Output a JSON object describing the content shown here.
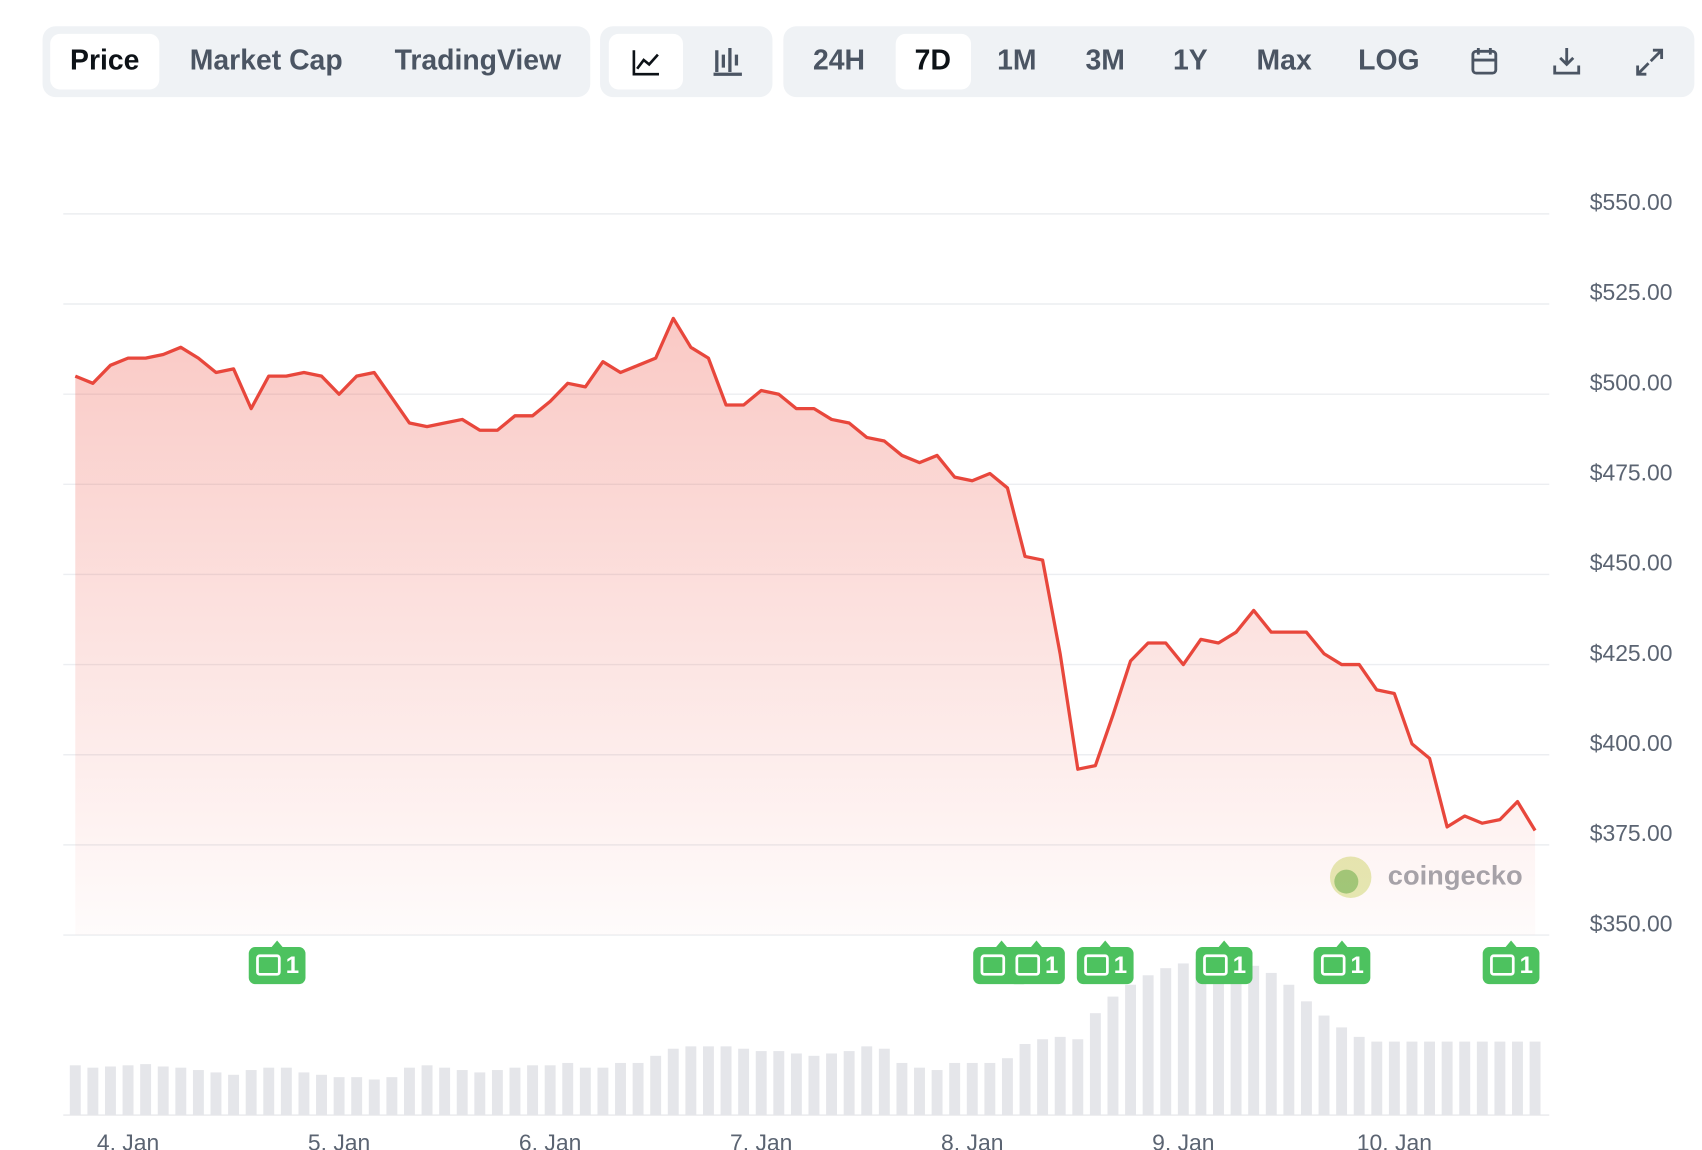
{
  "toolbar": {
    "tabs": [
      "Price",
      "Market Cap",
      "TradingView"
    ],
    "ranges": [
      "24H",
      "7D",
      "1M",
      "3M",
      "1Y",
      "Max",
      "LOG"
    ]
  },
  "chart_data": {
    "type": "line",
    "color": "#e8473c",
    "categories": [
      null,
      null,
      null,
      "4. Jan",
      null,
      null,
      null,
      null,
      null,
      null,
      null,
      null,
      null,
      null,
      null,
      "5. Jan",
      null,
      null,
      null,
      null,
      null,
      null,
      null,
      null,
      null,
      null,
      null,
      "6. Jan",
      null,
      null,
      null,
      null,
      null,
      null,
      null,
      null,
      null,
      null,
      null,
      "7. Jan",
      null,
      null,
      null,
      null,
      null,
      null,
      null,
      null,
      null,
      null,
      null,
      "8. Jan",
      null,
      null,
      null,
      null,
      null,
      null,
      null,
      null,
      null,
      null,
      null,
      "9. Jan",
      null,
      null,
      null,
      null,
      null,
      null,
      null,
      null,
      null,
      null,
      null,
      "10. Jan",
      null,
      null,
      null,
      null,
      null,
      null,
      null,
      null
    ],
    "values": [
      505,
      503,
      508,
      510,
      510,
      511,
      513,
      510,
      506,
      507,
      496,
      505,
      505,
      506,
      505,
      500,
      505,
      506,
      499,
      492,
      491,
      492,
      493,
      490,
      490,
      494,
      494,
      498,
      503,
      502,
      509,
      506,
      508,
      510,
      521,
      513,
      510,
      497,
      497,
      501,
      500,
      496,
      496,
      493,
      492,
      488,
      487,
      483,
      481,
      483,
      477,
      476,
      478,
      474,
      455,
      454,
      428,
      396,
      397,
      411,
      426,
      431,
      431,
      425,
      432,
      431,
      434,
      440,
      434,
      434,
      434,
      428,
      425,
      425,
      418,
      417,
      403,
      399,
      380,
      383,
      381,
      382,
      387,
      379
    ],
    "ylim": [
      350,
      550
    ],
    "yticks": [
      {
        "value": 350,
        "label": "$350.00"
      },
      {
        "value": 375,
        "label": "$375.00"
      },
      {
        "value": 400,
        "label": "$400.00"
      },
      {
        "value": 425,
        "label": "$425.00"
      },
      {
        "value": 450,
        "label": "$450.00"
      },
      {
        "value": 475,
        "label": "$475.00"
      },
      {
        "value": 500,
        "label": "$500.00"
      },
      {
        "value": 525,
        "label": "$525.00"
      },
      {
        "value": 550,
        "label": "$550.00"
      }
    ],
    "grid": true,
    "volume": {
      "color": "#e5e6ea",
      "ylim": [
        0,
        140
      ],
      "values": [
        42,
        40,
        41,
        42,
        43,
        41,
        40,
        38,
        36,
        34,
        38,
        40,
        40,
        36,
        34,
        32,
        32,
        30,
        32,
        40,
        42,
        40,
        38,
        36,
        38,
        40,
        42,
        42,
        44,
        40,
        40,
        44,
        44,
        50,
        56,
        58,
        58,
        58,
        56,
        54,
        54,
        52,
        50,
        52,
        54,
        58,
        56,
        44,
        40,
        38,
        44,
        44,
        44,
        48,
        60,
        64,
        66,
        64,
        86,
        100,
        110,
        118,
        124,
        128,
        132,
        130,
        128,
        126,
        120,
        110,
        96,
        84,
        74,
        66,
        62,
        62,
        62,
        62,
        62,
        62,
        62,
        62,
        62,
        62
      ]
    },
    "news": [
      "1",
      "1",
      "1",
      "1",
      "1",
      "1",
      "1"
    ],
    "watermark": "coingecko"
  }
}
